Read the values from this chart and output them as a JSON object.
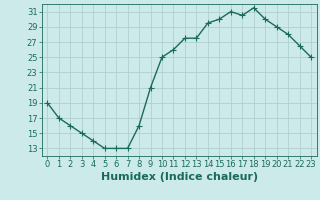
{
  "x": [
    0,
    1,
    2,
    3,
    4,
    5,
    6,
    7,
    8,
    9,
    10,
    11,
    12,
    13,
    14,
    15,
    16,
    17,
    18,
    19,
    20,
    21,
    22,
    23
  ],
  "y": [
    19,
    17,
    16,
    15,
    14,
    13,
    13,
    13,
    16,
    21,
    25,
    26,
    27.5,
    27.5,
    29.5,
    30,
    31,
    30.5,
    31.5,
    30,
    29,
    28,
    26.5,
    25
  ],
  "line_color": "#1a6b5a",
  "marker": "+",
  "marker_size": 4,
  "bg_color": "#cdeaea",
  "grid_color": "#b0d0ce",
  "xlabel": "Humidex (Indice chaleur)",
  "xlabel_fontsize": 8,
  "xlim": [
    -0.5,
    23.5
  ],
  "ylim": [
    12,
    32
  ],
  "yticks": [
    13,
    15,
    17,
    19,
    21,
    23,
    25,
    27,
    29,
    31
  ],
  "xticks": [
    0,
    1,
    2,
    3,
    4,
    5,
    6,
    7,
    8,
    9,
    10,
    11,
    12,
    13,
    14,
    15,
    16,
    17,
    18,
    19,
    20,
    21,
    22,
    23
  ],
  "tick_fontsize": 6,
  "line_width": 1.0
}
